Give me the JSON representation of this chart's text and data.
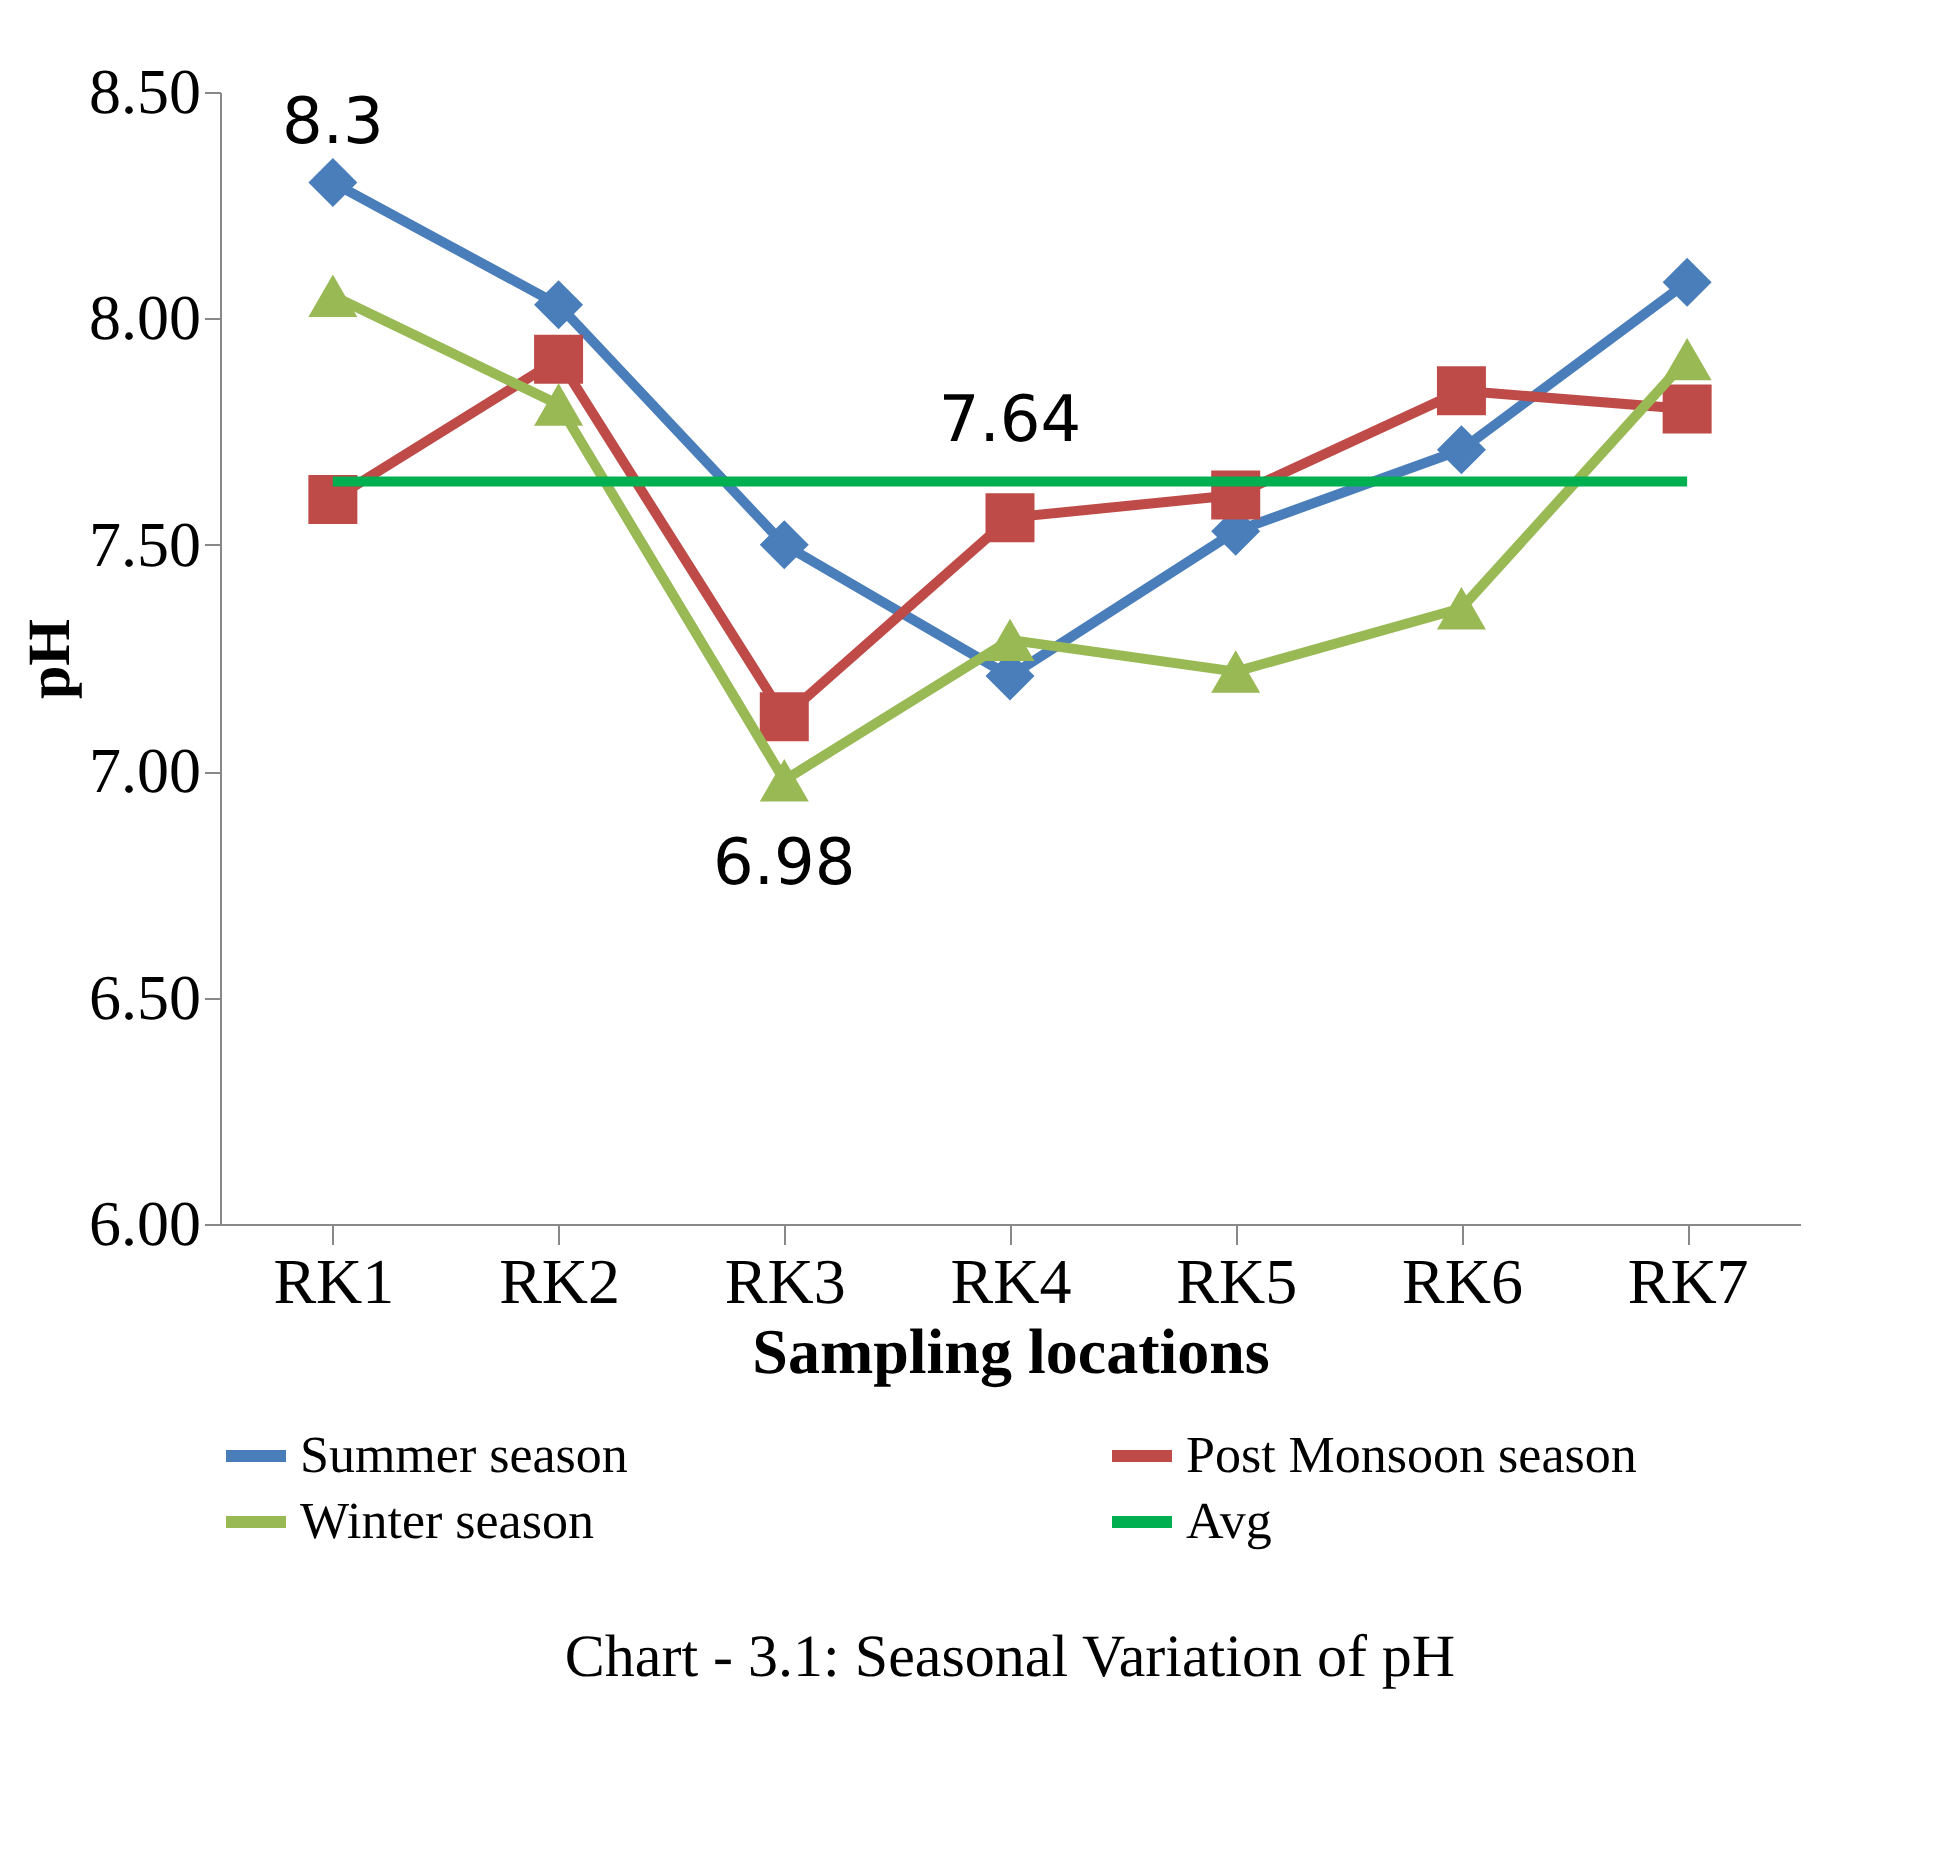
{
  "chart_data": {
    "type": "line",
    "title": "Chart - 3.1: Seasonal Variation of pH",
    "xlabel": "Sampling locations",
    "ylabel": "pH",
    "categories": [
      "RK1",
      "RK2",
      "RK3",
      "RK4",
      "RK5",
      "RK6",
      "RK7"
    ],
    "series": [
      {
        "name": "Summer season",
        "color": "#4a7ebb",
        "marker": "diamond",
        "values": [
          8.3,
          8.03,
          7.5,
          7.21,
          7.53,
          7.71,
          8.08
        ],
        "value_labels": [
          "8.3",
          null,
          null,
          null,
          null,
          null,
          null
        ]
      },
      {
        "name": "Post Monsoon season",
        "color": "#be4b48",
        "marker": "square",
        "values": [
          7.6,
          7.91,
          7.12,
          7.56,
          7.61,
          7.84,
          7.8
        ]
      },
      {
        "name": "Winter season",
        "color": "#98b954",
        "marker": "triangle",
        "values": [
          8.05,
          7.81,
          6.98,
          7.29,
          7.22,
          7.36,
          7.91
        ],
        "value_labels": [
          null,
          null,
          "6.98",
          null,
          null,
          null,
          null
        ]
      },
      {
        "name": "Avg",
        "color": "#00b050",
        "marker": "none",
        "values": [
          7.64,
          7.64,
          7.64,
          7.64,
          7.64,
          7.64,
          7.64
        ],
        "value_labels": [
          null,
          null,
          null,
          "7.64",
          null,
          null,
          null
        ]
      }
    ],
    "ylim": [
      6.0,
      8.5
    ],
    "yticks": [
      {
        "value": 6,
        "label": "6.00"
      },
      {
        "value": 6.5,
        "label": "6.50"
      },
      {
        "value": 7,
        "label": "7.00"
      },
      {
        "value": 7.5,
        "label": "7.50"
      },
      {
        "value": 8,
        "label": "8.00"
      },
      {
        "value": 8.5,
        "label": "8.50"
      }
    ],
    "grid": false,
    "legend": "bottom"
  }
}
